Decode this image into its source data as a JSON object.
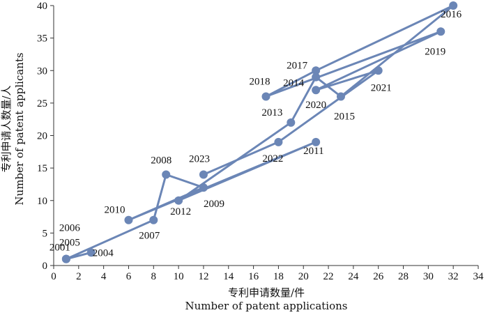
{
  "chart_data": {
    "type": "line",
    "xlabel_cn": "专利申请数量/件",
    "xlabel_en": "Number of patent applications",
    "ylabel_cn": "专利申请人数量/人",
    "ylabel_en": "Number of patent applicants",
    "xlim": [
      0,
      34
    ],
    "ylim": [
      0,
      40
    ],
    "xticks": [
      0,
      2,
      4,
      6,
      8,
      10,
      12,
      14,
      16,
      18,
      20,
      22,
      24,
      26,
      28,
      30,
      32,
      34
    ],
    "yticks": [
      0,
      5,
      10,
      15,
      20,
      25,
      30,
      35,
      40
    ],
    "grid": false,
    "legend": "none",
    "line_color": "#6b86b6",
    "series": [
      {
        "points": [
          {
            "label": "2001",
            "x": 1,
            "y": 1
          },
          {
            "label": "2004",
            "x": 3,
            "y": 2
          },
          {
            "label": "2005",
            "x": 1,
            "y": 1
          },
          {
            "label": "2006",
            "x": 1,
            "y": 1
          },
          {
            "label": "2007",
            "x": 8,
            "y": 7
          },
          {
            "label": "2008",
            "x": 9,
            "y": 14
          },
          {
            "label": "2009",
            "x": 12,
            "y": 12
          },
          {
            "label": "2010",
            "x": 6,
            "y": 7
          },
          {
            "label": "2011",
            "x": 21,
            "y": 19
          },
          {
            "label": "2012",
            "x": 10,
            "y": 10
          },
          {
            "label": "2013",
            "x": 19,
            "y": 22
          },
          {
            "label": "2014",
            "x": 21,
            "y": 29
          },
          {
            "label": "2015",
            "x": 23,
            "y": 26
          },
          {
            "label": "2016",
            "x": 32,
            "y": 40
          },
          {
            "label": "2017",
            "x": 21,
            "y": 30
          },
          {
            "label": "2018",
            "x": 17,
            "y": 26
          },
          {
            "label": "2019",
            "x": 31,
            "y": 36
          },
          {
            "label": "2020",
            "x": 21,
            "y": 27
          },
          {
            "label": "2021",
            "x": 26,
            "y": 30
          },
          {
            "label": "2022",
            "x": 18,
            "y": 19
          },
          {
            "label": "2023",
            "x": 12,
            "y": 14
          }
        ]
      }
    ]
  }
}
